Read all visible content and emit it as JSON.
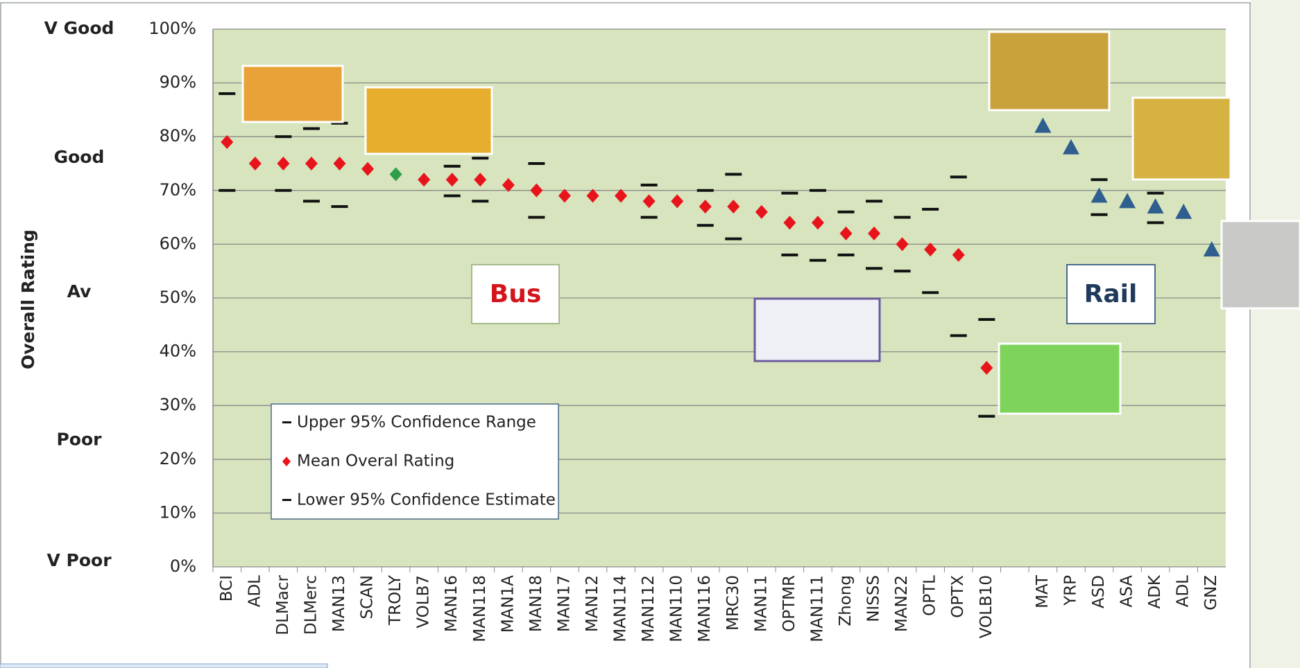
{
  "chart_data": {
    "type": "scatter",
    "y_axis_title": "Overall Rating",
    "categories": [
      "BCI",
      "ADL",
      "DLMacr",
      "DLMerc",
      "MAN13",
      "SCAN",
      "TROLY",
      "VOLB7",
      "MAN16",
      "MAN118",
      "MAN1A",
      "MAN18",
      "MAN17",
      "MAN12",
      "MAN114",
      "MAN112",
      "MAN110",
      "MAN116",
      "MRC30",
      "MAN11",
      "OPTMR",
      "MAN111",
      "Zhong",
      "NISSS",
      "MAN22",
      "OPTL",
      "OPTX",
      "VOLB10",
      null,
      "MAT",
      "YRP",
      "ASD",
      "ASA",
      "ADK",
      "ADL",
      "GNZ"
    ],
    "series": [
      {
        "name": "Upper 95% Confidence Range",
        "marker": "dash",
        "color": "#111111",
        "values": [
          88,
          null,
          80,
          81.5,
          82.5,
          null,
          null,
          null,
          74.5,
          76,
          null,
          75,
          null,
          null,
          null,
          71,
          null,
          70,
          73,
          null,
          69.5,
          70,
          66,
          68,
          65,
          66.5,
          72.5,
          46,
          null,
          null,
          null,
          72,
          null,
          69.5,
          null,
          null
        ]
      },
      {
        "name": "Mean Overal Rating",
        "marker": "diamond",
        "color": "#e8141b",
        "colors": [
          "#e8141b",
          "#e8141b",
          "#e8141b",
          "#e8141b",
          "#e8141b",
          "#e8141b",
          "#2e9e4a",
          "#e8141b",
          "#e8141b",
          "#e8141b",
          "#e8141b",
          "#e8141b",
          "#e8141b",
          "#e8141b",
          "#e8141b",
          "#e8141b",
          "#e8141b",
          "#e8141b",
          "#e8141b",
          "#e8141b",
          "#e8141b",
          "#e8141b",
          "#e8141b",
          "#e8141b",
          "#e8141b",
          "#e8141b",
          "#e8141b",
          "#e8141b",
          null,
          null,
          null,
          null,
          null,
          null,
          null,
          null
        ],
        "values": [
          79,
          75,
          75,
          75,
          75,
          74,
          73,
          72,
          72,
          72,
          71,
          70,
          69,
          69,
          69,
          68,
          68,
          67,
          67,
          66,
          64,
          64,
          62,
          62,
          60,
          59,
          58,
          37,
          null,
          null,
          null,
          null,
          null,
          null,
          null,
          null
        ]
      },
      {
        "name": "Lower 95% Confidence Estimate",
        "marker": "dash",
        "color": "#111111",
        "values": [
          70,
          null,
          70,
          68,
          67,
          null,
          null,
          null,
          69,
          68,
          null,
          65,
          null,
          null,
          null,
          65,
          null,
          63.5,
          61,
          null,
          58,
          57,
          58,
          55.5,
          55,
          51,
          43,
          28,
          null,
          null,
          null,
          65.5,
          null,
          64,
          null,
          null
        ]
      },
      {
        "marker": "triangle",
        "color": "#2f5f8f",
        "values": [
          null,
          null,
          null,
          null,
          null,
          null,
          null,
          null,
          null,
          null,
          null,
          null,
          null,
          null,
          null,
          null,
          null,
          null,
          null,
          null,
          null,
          null,
          null,
          null,
          null,
          null,
          null,
          null,
          null,
          82,
          78,
          69,
          68,
          67,
          66,
          59
        ]
      }
    ],
    "ylim": [
      0,
      100
    ],
    "yticks": [
      {
        "value": 0,
        "label": "0%"
      },
      {
        "value": 10,
        "label": "10%"
      },
      {
        "value": 20,
        "label": "20%"
      },
      {
        "value": 30,
        "label": "30%"
      },
      {
        "value": 40,
        "label": "40%"
      },
      {
        "value": 50,
        "label": "50%"
      },
      {
        "value": 60,
        "label": "60%"
      },
      {
        "value": 70,
        "label": "70%"
      },
      {
        "value": 80,
        "label": "80%"
      },
      {
        "value": 90,
        "label": "90%"
      },
      {
        "value": 100,
        "label": "100%"
      }
    ],
    "grid": true,
    "rating_labels": [
      {
        "value": 100,
        "label": "V Good"
      },
      {
        "value": 76,
        "label": "Good"
      },
      {
        "value": 51,
        "label": "Av"
      },
      {
        "value": 23.5,
        "label": "Poor"
      },
      {
        "value": 1,
        "label": "V Poor"
      }
    ],
    "annotations": [
      "Bus",
      "Rail"
    ]
  }
}
